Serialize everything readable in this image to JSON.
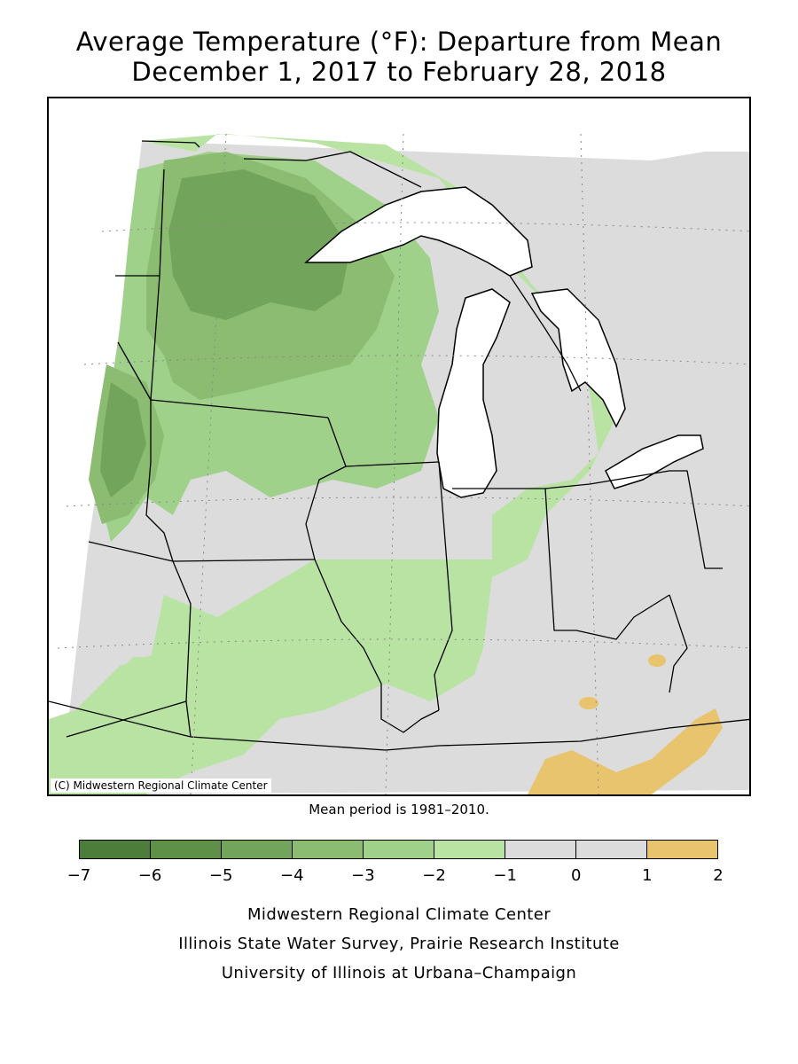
{
  "title_line1": "Average Temperature (°F): Departure from Mean",
  "title_line2": "December 1, 2017 to February 28, 2018",
  "copyright": "(C) Midwestern Regional Climate Center",
  "mean_period": "Mean period is 1981–2010.",
  "legend": {
    "ticks": [
      "−7",
      "−6",
      "−5",
      "−4",
      "−3",
      "−2",
      "−1",
      "0",
      "1",
      "2"
    ],
    "colors": [
      "#4c7d3a",
      "#5e9147",
      "#72a55b",
      "#8cbc72",
      "#9fd18a",
      "#b8e3a2",
      "#dcdcdc",
      "#dcdcdc",
      "#e9c46e"
    ]
  },
  "footer": {
    "line1": "Midwestern Regional Climate Center",
    "line2": "Illinois State Water Survey, Prairie Research Institute",
    "line3": "University of Illinois at Urbana–Champaign"
  },
  "colors": {
    "water": "#ffffff",
    "neutral": "#dcdcdc",
    "warm": "#e9c46e"
  }
}
